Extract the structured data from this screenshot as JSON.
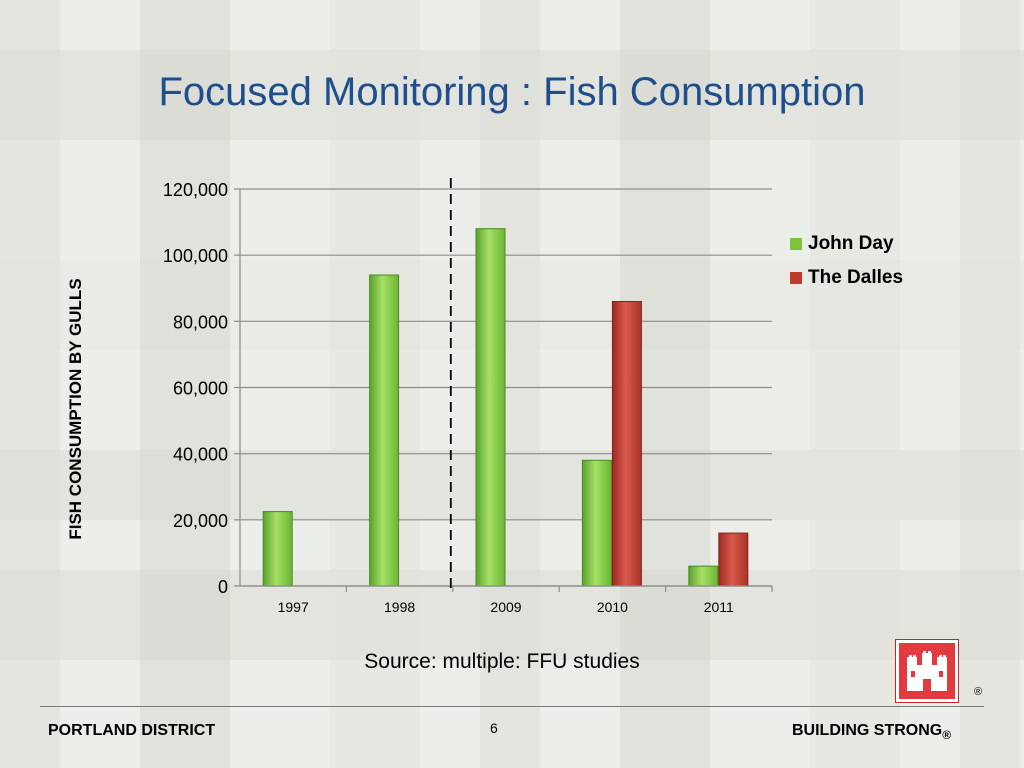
{
  "slide": {
    "title": "Focused Monitoring : Fish Consumption",
    "source": "Source: multiple: FFU studies",
    "footer_left": "PORTLAND DISTRICT",
    "page_number": "6",
    "footer_right": "BUILDING STRONG",
    "registered": "®",
    "logo_icon": "castle-icon"
  },
  "colors": {
    "title": "#1f4e8c",
    "john_day": "#7dc43a",
    "the_dalles": "#c0392b"
  },
  "chart_data": {
    "type": "bar",
    "title": "",
    "xlabel": "",
    "ylabel": "FISH CONSUMPTION BY GULLS",
    "categories": [
      "1997",
      "1998",
      "2009",
      "2010",
      "2011"
    ],
    "series": [
      {
        "name": "John Day",
        "values": [
          22500,
          94000,
          108000,
          38000,
          6000
        ]
      },
      {
        "name": "The Dalles",
        "values": [
          null,
          null,
          null,
          86000,
          16000
        ]
      }
    ],
    "ylim": [
      0,
      120000
    ],
    "yticks": [
      0,
      20000,
      40000,
      60000,
      80000,
      100000,
      120000
    ],
    "ytick_labels": [
      "0",
      "20,000",
      "40,000",
      "60,000",
      "80,000",
      "100,000",
      "120,000"
    ],
    "grid": true,
    "legend": "right",
    "annotation": "dashed vertical divider between 1998 and 2009"
  }
}
